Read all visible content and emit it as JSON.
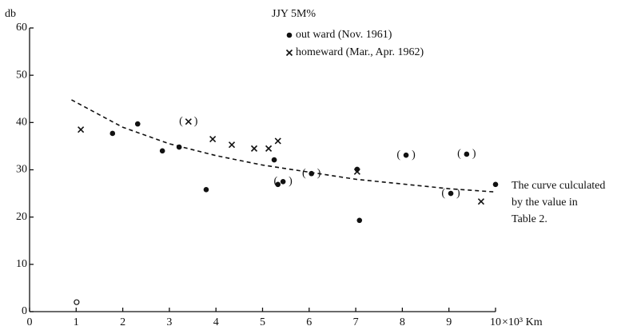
{
  "chart_data": {
    "type": "scatter",
    "title": "JJY 5M%",
    "ylabel": "db",
    "xlabel": "×10³ Km",
    "xlim": [
      0,
      10
    ],
    "xticks": [
      0,
      1,
      2,
      3,
      4,
      5,
      6,
      7,
      8,
      9,
      10
    ],
    "ylim": [
      0,
      60
    ],
    "yticks": [
      0,
      10,
      20,
      30,
      40,
      50,
      60
    ],
    "grid": false,
    "series": [
      {
        "name": "out ward (Nov. 1961)",
        "marker": "dot",
        "color": "#111",
        "x": [
          1.78,
          2.32,
          2.85,
          3.21,
          3.79,
          5.25,
          5.33,
          5.44,
          6.05,
          7.03,
          7.08,
          8.08,
          9.04,
          9.38,
          10.0
        ],
        "values": [
          37.7,
          39.7,
          34.0,
          34.8,
          25.8,
          32.1,
          26.9,
          27.5,
          29.2,
          30.1,
          19.3,
          33.1,
          25.0,
          33.3,
          26.9
        ],
        "bracketed": [
          false,
          false,
          false,
          false,
          false,
          false,
          false,
          true,
          true,
          false,
          false,
          true,
          true,
          true,
          false
        ]
      },
      {
        "name": "homeward (Mar., Apr. 1962)",
        "marker": "cross",
        "color": "#111",
        "x": [
          1.1,
          3.41,
          3.93,
          4.34,
          4.82,
          5.13,
          5.33,
          7.03,
          9.69
        ],
        "values": [
          38.5,
          40.2,
          36.5,
          35.3,
          34.5,
          34.5,
          36.1,
          29.6,
          23.3
        ],
        "bracketed": [
          false,
          true,
          false,
          false,
          false,
          false,
          false,
          false,
          false
        ]
      }
    ],
    "extra_points": {
      "marker": "open",
      "x": [
        1.01
      ],
      "values": [
        2.0
      ]
    },
    "curve": {
      "style": "dashed",
      "x": [
        0.9,
        2,
        3,
        4,
        5,
        6,
        7,
        8,
        9,
        10
      ],
      "values": [
        44.8,
        39,
        35.5,
        33,
        31,
        29.5,
        28,
        27,
        26,
        25.3
      ]
    },
    "annotation": [
      "The curve culculated",
      "by the value in",
      "Table 2."
    ]
  }
}
